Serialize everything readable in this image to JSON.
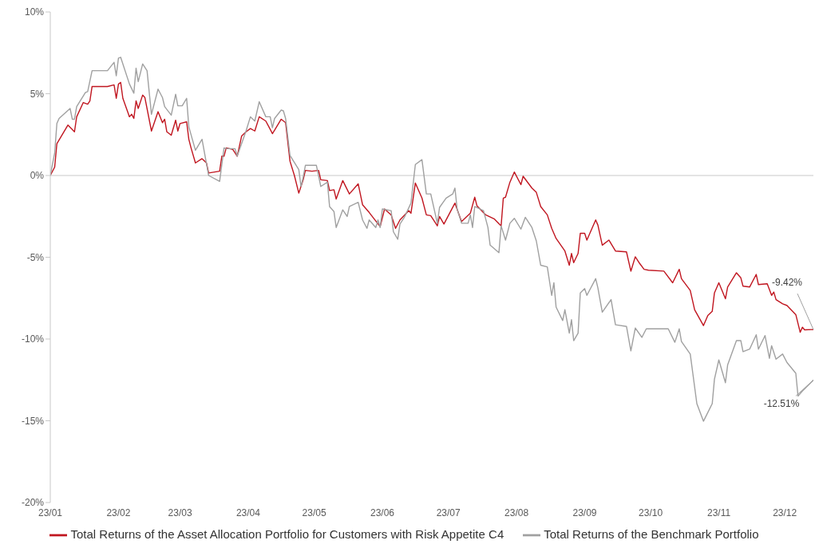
{
  "chart_data": {
    "type": "line",
    "xlim": [
      "--01-01",
      "--12-14"
    ],
    "xticks": [
      {
        "value": "--01-01",
        "label": "23/01"
      },
      {
        "value": "--02-01",
        "label": "23/02"
      },
      {
        "value": "--03-01",
        "label": "23/03"
      },
      {
        "value": "--04-01",
        "label": "23/04"
      },
      {
        "value": "--05-01",
        "label": "23/05"
      },
      {
        "value": "--06-01",
        "label": "23/06"
      },
      {
        "value": "--07-01",
        "label": "23/07"
      },
      {
        "value": "--08-01",
        "label": "23/08"
      },
      {
        "value": "--09-01",
        "label": "23/09"
      },
      {
        "value": "--10-01",
        "label": "23/10"
      },
      {
        "value": "--11-01",
        "label": "23/11"
      },
      {
        "value": "--12-01",
        "label": "23/12"
      }
    ],
    "ylim": [
      -20,
      10
    ],
    "yticks": [
      {
        "value": -20,
        "label": "-20%"
      },
      {
        "value": -15,
        "label": "-15%"
      },
      {
        "value": -10,
        "label": "-10%"
      },
      {
        "value": -5,
        "label": "-5%"
      },
      {
        "value": 0,
        "label": "0%"
      },
      {
        "value": 5,
        "label": "5%"
      },
      {
        "value": 10,
        "label": "10%"
      }
    ],
    "grid": false,
    "legend": "bottom",
    "ref_lines": [
      {
        "axis": "y",
        "value": 0,
        "color": "#c8c8c8"
      }
    ],
    "annotations": [
      {
        "text": "-9.42%",
        "x": "--12-14",
        "y": -9.42
      },
      {
        "text": "-12.51%",
        "x": "--12-14",
        "y": -12.51
      }
    ],
    "series": [
      {
        "name": "Total Returns of the Asset Allocation Portfolio for Customers with Risk Appetite C4",
        "color": "#c0151f",
        "x": [
          "--01-01",
          "--01-03",
          "--01-04",
          "--01-09",
          "--01-12",
          "--01-13",
          "--01-16",
          "--01-18",
          "--01-19",
          "--01-20",
          "--01-27",
          "--01-30",
          "--01-31",
          "--02-01",
          "--02-02",
          "--02-03",
          "--02-06",
          "--02-07",
          "--02-08",
          "--02-09",
          "--02-10",
          "--02-12",
          "--02-13",
          "--02-16",
          "--02-19",
          "--02-21",
          "--02-22",
          "--02-23",
          "--02-25",
          "--02-27",
          "--02-28",
          "--03-01",
          "--03-04",
          "--03-05",
          "--03-06",
          "--03-08",
          "--03-11",
          "--03-13",
          "--03-14",
          "--03-19",
          "--03-20",
          "--03-21",
          "--03-22",
          "--03-25",
          "--03-27",
          "--03-29",
          "--03-31",
          "--04-02",
          "--04-04",
          "--04-06",
          "--04-09",
          "--04-11",
          "--04-12",
          "--04-13",
          "--04-16",
          "--04-18",
          "--04-20",
          "--04-22",
          "--04-24",
          "--04-26",
          "--04-27",
          "--04-30",
          "--05-03",
          "--05-04",
          "--05-07",
          "--05-08",
          "--05-10",
          "--05-11",
          "--05-14",
          "--05-17",
          "--05-21",
          "--05-23",
          "--05-26",
          "--05-31",
          "--06-02",
          "--06-05",
          "--06-07",
          "--06-09",
          "--06-13",
          "--06-14",
          "--06-16",
          "--06-19",
          "--06-21",
          "--06-23",
          "--06-26",
          "--06-27",
          "--06-29",
          "--07-04",
          "--07-07",
          "--07-11",
          "--07-13",
          "--07-14",
          "--07-18",
          "--07-22",
          "--07-25",
          "--07-26",
          "--07-27",
          "--07-29",
          "--07-31",
          "--08-03",
          "--08-04",
          "--08-08",
          "--08-10",
          "--08-12",
          "--08-15",
          "--08-17",
          "--08-19",
          "--08-23",
          "--08-25",
          "--08-26",
          "--08-27",
          "--08-29",
          "--08-30",
          "--09-01",
          "--09-02",
          "--09-06",
          "--09-07",
          "--09-09",
          "--09-12",
          "--09-15",
          "--09-20",
          "--09-22",
          "--09-24",
          "--09-26",
          "--09-28",
          "--09-30",
          "--10-07",
          "--10-11",
          "--10-14",
          "--10-15",
          "--10-19",
          "--10-21",
          "--10-25",
          "--10-27",
          "--10-29",
          "--10-30",
          "--11-01",
          "--11-04",
          "--11-05",
          "--11-09",
          "--11-11",
          "--11-12",
          "--11-15",
          "--11-18",
          "--11-19",
          "--11-23",
          "--11-25",
          "--11-26",
          "--11-27",
          "--11-30",
          "--12-02",
          "--12-06",
          "--12-08",
          "--12-09",
          "--12-10",
          "--12-14"
        ],
        "values": [
          0,
          0.51,
          1.95,
          3.08,
          2.67,
          3.59,
          4.46,
          4.36,
          4.56,
          5.44,
          5.44,
          5.54,
          4.72,
          5.59,
          5.69,
          4.72,
          3.59,
          3.74,
          3.49,
          4.56,
          4.1,
          4.92,
          4.77,
          2.72,
          3.9,
          3.23,
          3.44,
          2.67,
          2.46,
          3.38,
          2.72,
          3.18,
          3.28,
          2.21,
          1.69,
          0.77,
          1.03,
          0.77,
          0.15,
          0.26,
          1.18,
          1.18,
          1.69,
          1.59,
          1.18,
          2.41,
          2.67,
          2.87,
          2.72,
          3.59,
          3.33,
          2.82,
          2.56,
          2.77,
          3.44,
          3.23,
          0.87,
          0,
          -1.08,
          -0.26,
          0.31,
          0.26,
          0.31,
          -0.26,
          -0.31,
          -0.92,
          -0.87,
          -1.44,
          -0.31,
          -1.13,
          -0.51,
          -1.79,
          -2.26,
          -3.13,
          -2.05,
          -2.41,
          -3.23,
          -2.72,
          -2.15,
          -2.31,
          -0.46,
          -1.38,
          -2.41,
          -2.46,
          -3.08,
          -2.51,
          -2.97,
          -1.69,
          -2.82,
          -2.31,
          -1.33,
          -1.85,
          -2.41,
          -2.67,
          -3.08,
          -1.38,
          -1.33,
          -0.41,
          0.21,
          -0.56,
          -0.05,
          -0.77,
          -1.03,
          -1.9,
          -2.41,
          -3.23,
          -3.85,
          -4.62,
          -5.49,
          -4.77,
          -5.33,
          -4.77,
          -3.54,
          -3.54,
          -3.95,
          -2.72,
          -3.03,
          -4.26,
          -3.95,
          -4.62,
          -4.67,
          -5.85,
          -4.97,
          -5.38,
          -5.74,
          -5.79,
          -5.85,
          -6.56,
          -5.74,
          -6.31,
          -7.03,
          -8.21,
          -9.18,
          -8.56,
          -8.31,
          -7.18,
          -6.56,
          -7.54,
          -6.82,
          -5.95,
          -6.26,
          -6.77,
          -6.82,
          -6.05,
          -6.67,
          -6.62,
          -7.33,
          -7.13,
          -7.59,
          -7.85,
          -7.95,
          -8.51,
          -9.59,
          -9.28,
          -9.44,
          -9.42
        ]
      },
      {
        "name": "Total Returns of the Benchmark Portfolio",
        "color": "#a0a0a0",
        "x": [
          "--01-01",
          "--01-03",
          "--01-04",
          "--01-05",
          "--01-10",
          "--01-11",
          "--01-12",
          "--01-13",
          "--01-17",
          "--01-18",
          "--01-20",
          "--01-27",
          "--01-30",
          "--01-31",
          "--02-01",
          "--02-02",
          "--02-06",
          "--02-08",
          "--02-09",
          "--02-10",
          "--02-12",
          "--02-14",
          "--02-16",
          "--02-19",
          "--02-21",
          "--02-22",
          "--02-25",
          "--02-27",
          "--02-28",
          "--03-02",
          "--03-04",
          "--03-05",
          "--03-08",
          "--03-11",
          "--03-14",
          "--03-19",
          "--03-21",
          "--03-22",
          "--03-26",
          "--03-27",
          "--03-31",
          "--04-02",
          "--04-04",
          "--04-06",
          "--04-09",
          "--04-11",
          "--04-12",
          "--04-13",
          "--04-16",
          "--04-17",
          "--04-18",
          "--04-20",
          "--04-24",
          "--04-25",
          "--04-26",
          "--04-27",
          "--05-02",
          "--05-04",
          "--05-07",
          "--05-08",
          "--05-10",
          "--05-11",
          "--05-14",
          "--05-16",
          "--05-17",
          "--05-21",
          "--05-23",
          "--05-25",
          "--05-26",
          "--05-29",
          "--05-30",
          "--05-31",
          "--06-01",
          "--06-05",
          "--06-06",
          "--06-08",
          "--06-09",
          "--06-11",
          "--06-14",
          "--06-16",
          "--06-19",
          "--06-21",
          "--06-23",
          "--06-26",
          "--06-27",
          "--06-30",
          "--07-03",
          "--07-04",
          "--07-05",
          "--07-07",
          "--07-10",
          "--07-11",
          "--07-12",
          "--07-13",
          "--07-17",
          "--07-19",
          "--07-20",
          "--07-24",
          "--07-25",
          "--07-27",
          "--07-29",
          "--07-31",
          "--08-03",
          "--08-05",
          "--08-08",
          "--08-10",
          "--08-12",
          "--08-15",
          "--08-17",
          "--08-18",
          "--08-19",
          "--08-22",
          "--08-23",
          "--08-25",
          "--08-26",
          "--08-27",
          "--08-29",
          "--08-30",
          "--09-01",
          "--09-02",
          "--09-06",
          "--09-07",
          "--09-09",
          "--09-13",
          "--09-15",
          "--09-20",
          "--09-22",
          "--09-24",
          "--09-27",
          "--09-29",
          "--10-09",
          "--10-12",
          "--10-14",
          "--10-15",
          "--10-19",
          "--10-22",
          "--10-25",
          "--10-29",
          "--10-30",
          "--11-01",
          "--11-04",
          "--11-05",
          "--11-09",
          "--11-11",
          "--11-12",
          "--11-15",
          "--11-18",
          "--11-19",
          "--11-22",
          "--11-24",
          "--11-25",
          "--11-27",
          "--11-30",
          "--12-02",
          "--12-06",
          "--12-07",
          "--12-09",
          "--12-14"
        ],
        "values": [
          0,
          1.38,
          3.18,
          3.49,
          4.1,
          3.44,
          3.44,
          4.21,
          5.08,
          5.13,
          6.41,
          6.41,
          6.92,
          6.1,
          7.18,
          7.23,
          5.59,
          5.03,
          6.56,
          5.74,
          6.82,
          6.41,
          3.74,
          5.28,
          4.77,
          4.21,
          3.69,
          4.97,
          4.26,
          4.26,
          4.72,
          2.97,
          1.54,
          2.21,
          0,
          -0.36,
          1.69,
          1.64,
          1.64,
          1.18,
          2.72,
          3.59,
          3.33,
          4.51,
          3.59,
          3.59,
          2.92,
          3.49,
          4.0,
          3.95,
          3.49,
          1.23,
          0.36,
          -0.67,
          -0.1,
          0.62,
          0.62,
          -0.67,
          -0.41,
          -1.9,
          -2.21,
          -3.18,
          -2.1,
          -2.51,
          -1.9,
          -1.64,
          -2.72,
          -3.23,
          -2.72,
          -3.18,
          -2.72,
          -3.18,
          -2.05,
          -2.15,
          -3.44,
          -3.9,
          -2.97,
          -2.56,
          -1.69,
          0.67,
          0.97,
          -1.13,
          -1.13,
          -2.92,
          -1.95,
          -1.38,
          -1.13,
          -0.77,
          -2.05,
          -2.92,
          -2.92,
          -2.41,
          -3.18,
          -1.9,
          -2.15,
          -3.18,
          -4.26,
          -4.72,
          -3.08,
          -3.95,
          -2.92,
          -2.62,
          -3.28,
          -2.56,
          -3.18,
          -4.0,
          -5.49,
          -5.59,
          -7.33,
          -6.56,
          -8.05,
          -8.87,
          -8.21,
          -9.64,
          -8.82,
          -10.1,
          -9.64,
          -7.18,
          -6.92,
          -7.33,
          -6.31,
          -6.87,
          -8.36,
          -7.59,
          -9.13,
          -9.23,
          -10.72,
          -9.33,
          -9.9,
          -9.38,
          -9.38,
          -10.2,
          -9.38,
          -10.15,
          -10.92,
          -13.95,
          -15.03,
          -13.95,
          -12.46,
          -11.28,
          -12.67,
          -11.59,
          -10.1,
          -10.1,
          -10.77,
          -10.62,
          -9.74,
          -10.62,
          -9.79,
          -11.18,
          -10.41,
          -11.23,
          -10.92,
          -11.44,
          -12.1,
          -13.49,
          -13.18,
          -12.51
        ]
      }
    ]
  }
}
